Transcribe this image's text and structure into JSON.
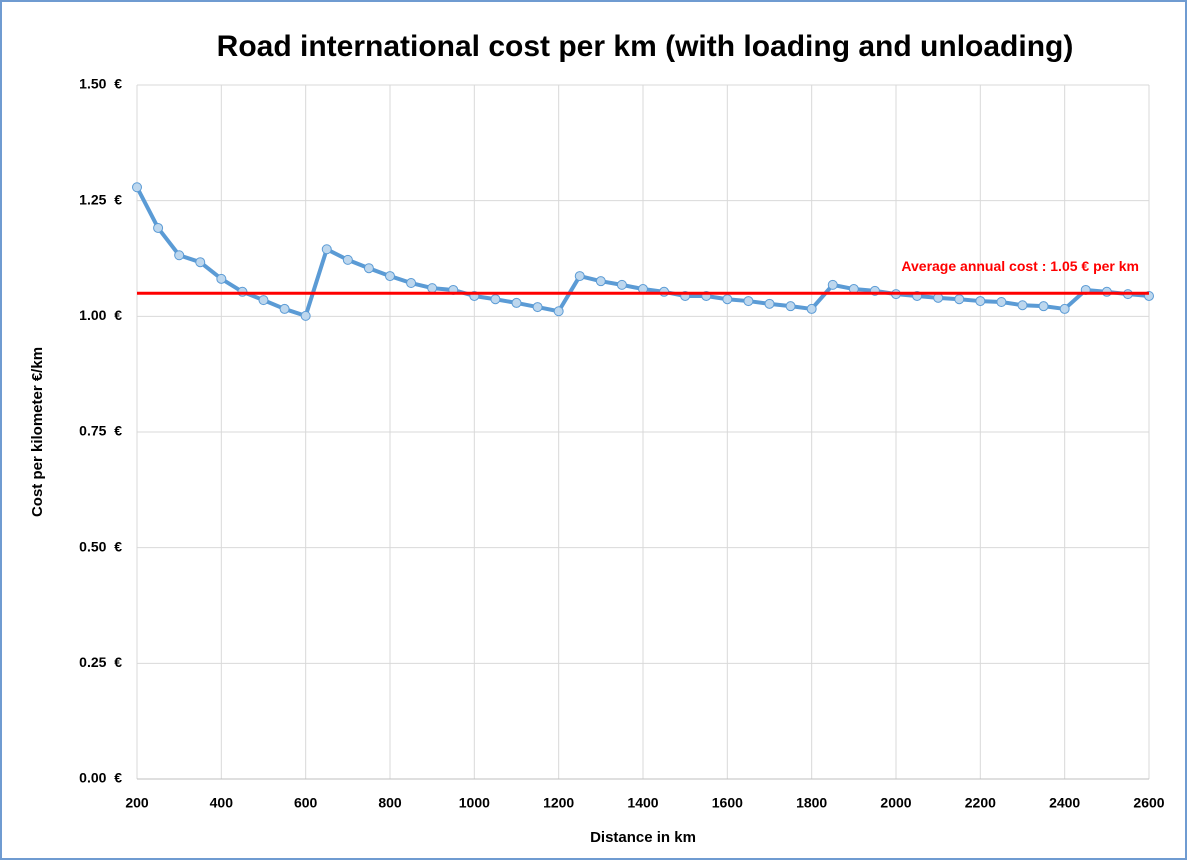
{
  "chart_data": {
    "type": "line",
    "title": "Road international cost per km (with loading and unloading)",
    "x_label": "Distance in km",
    "y_label": "Cost per kilometer €/km",
    "x": [
      200,
      250,
      300,
      350,
      400,
      450,
      500,
      550,
      600,
      650,
      700,
      750,
      800,
      850,
      900,
      950,
      1000,
      1050,
      1100,
      1150,
      1200,
      1250,
      1300,
      1350,
      1400,
      1450,
      1500,
      1550,
      1600,
      1650,
      1700,
      1750,
      1800,
      1850,
      1900,
      1950,
      2000,
      2050,
      2100,
      2150,
      2200,
      2250,
      2300,
      2350,
      2400,
      2450,
      2500,
      2550,
      2600
    ],
    "series": [
      {
        "color": "#5b9bd5",
        "marker_color": "#bdd7ee",
        "values": [
          1.279,
          1.191,
          1.132,
          1.117,
          1.081,
          1.053,
          1.035,
          1.016,
          1.001,
          1.145,
          1.122,
          1.104,
          1.087,
          1.072,
          1.061,
          1.057,
          1.044,
          1.037,
          1.029,
          1.02,
          1.011,
          1.087,
          1.076,
          1.068,
          1.059,
          1.053,
          1.044,
          1.044,
          1.037,
          1.033,
          1.027,
          1.022,
          1.016,
          1.068,
          1.059,
          1.055,
          1.048,
          1.044,
          1.04,
          1.037,
          1.033,
          1.031,
          1.024,
          1.022,
          1.016,
          1.057,
          1.053,
          1.048,
          1.044
        ]
      }
    ],
    "average": {
      "value": 1.05,
      "label": "Average annual cost : 1.05 € per km",
      "color": "#ff0000"
    },
    "xlim": [
      200,
      2600
    ],
    "xticks": [
      200,
      400,
      600,
      800,
      1000,
      1200,
      1400,
      1600,
      1800,
      2000,
      2200,
      2400,
      2600
    ],
    "ylim": [
      0,
      1.5
    ],
    "yticks": [
      {
        "value": 0,
        "label": "0.00  €"
      },
      {
        "value": 0.25,
        "label": "0.25  €"
      },
      {
        "value": 0.5,
        "label": "0.50  €"
      },
      {
        "value": 0.75,
        "label": "0.75  €"
      },
      {
        "value": 1,
        "label": "1.00  €"
      },
      {
        "value": 1.25,
        "label": "1.25  €"
      },
      {
        "value": 1.5,
        "label": "1.50  €"
      }
    ],
    "grid": true
  }
}
